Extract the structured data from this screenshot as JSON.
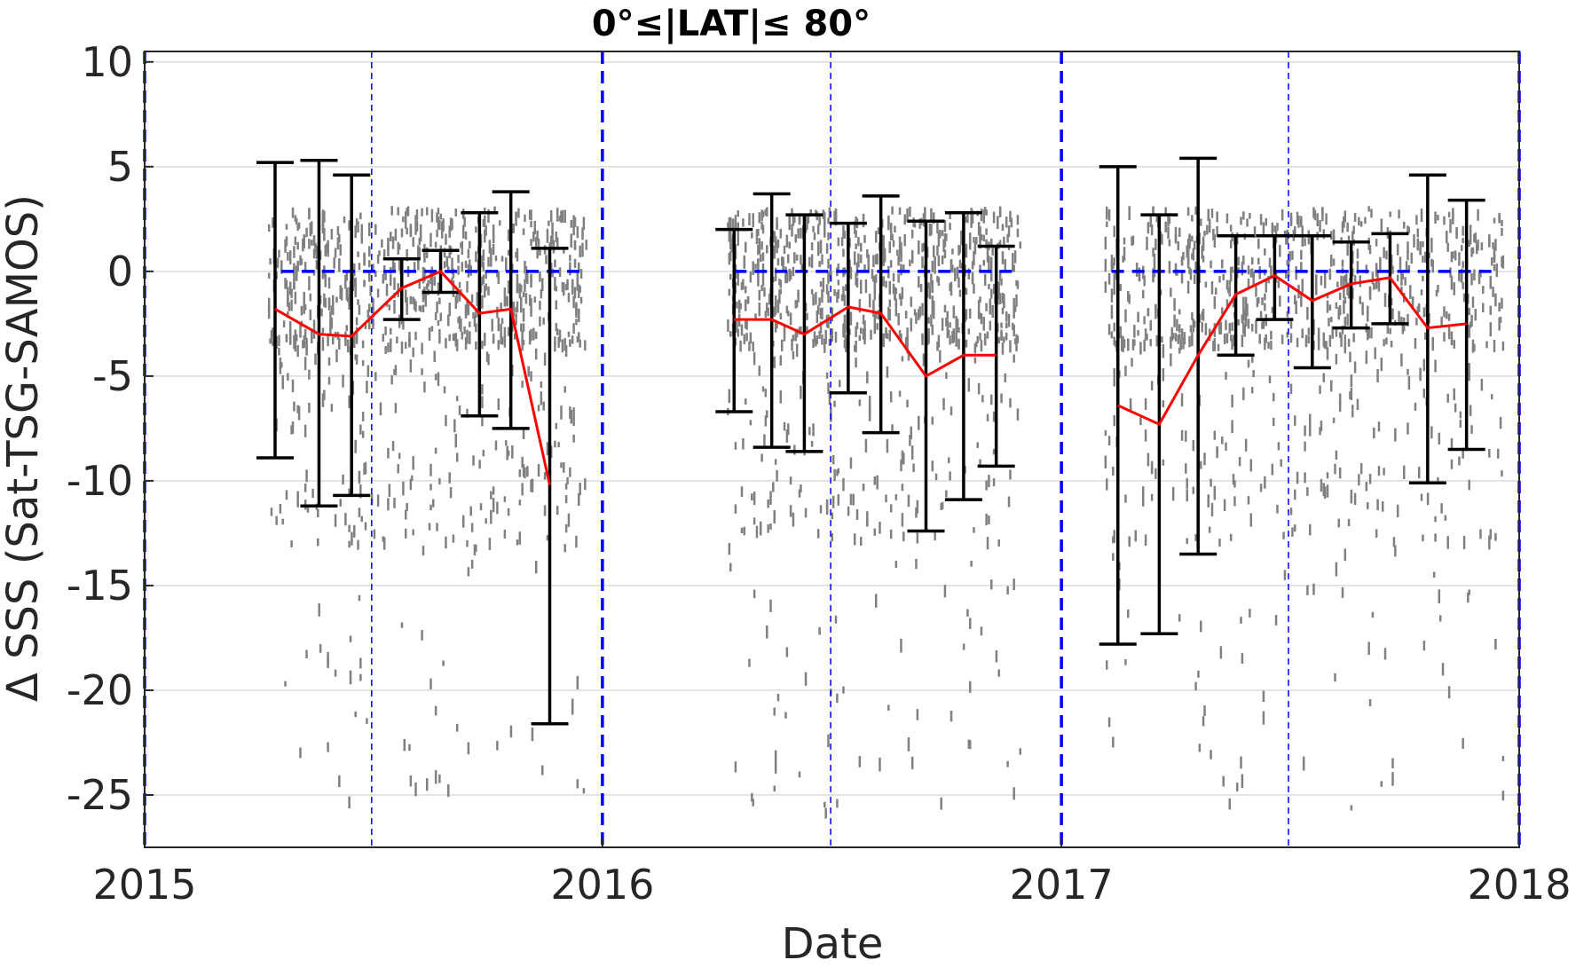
{
  "chart_data": {
    "type": "line",
    "title": "0°≤|LAT|≤ 80°",
    "xlabel": "Date",
    "ylabel": "Δ SSS (Sat-TSG-SAMOS)",
    "xlim": [
      "2015-01-01",
      "2018-01-01"
    ],
    "ylim": [
      -27.5,
      10.5
    ],
    "grid": true,
    "x_ticks": [
      "2015",
      "2016",
      "2017",
      "2018"
    ],
    "y_ticks": [
      10,
      5,
      0,
      -5,
      -10,
      -15,
      -20,
      -25
    ],
    "reference_lines": {
      "zero_line": {
        "y": 0,
        "color": "#0000ff",
        "style": "dashed",
        "segments": [
          [
            "2015-04-20",
            "2015-12-15"
          ],
          [
            "2016-04-15",
            "2016-11-25"
          ],
          [
            "2017-02-10",
            "2017-12-15"
          ]
        ]
      },
      "year_lines": {
        "color": "#0000ff",
        "style": "dashed",
        "x": [
          "2015-01-01",
          "2016-01-01",
          "2017-01-01",
          "2018-01-01"
        ]
      },
      "mid_year_lines": {
        "color": "#0000ff",
        "style": "dashed-thin",
        "x": [
          "2015-07-01",
          "2016-07-01",
          "2017-07-01"
        ]
      }
    },
    "series": [
      {
        "style": "errorbar",
        "color": "#000000",
        "x": [
          "2015-04-15",
          "2015-05-20",
          "2015-06-15",
          "2015-07-25",
          "2015-08-25",
          "2015-09-25",
          "2015-10-20",
          "2015-11-20",
          "2016-04-15",
          "2016-05-15",
          "2016-06-10",
          "2016-07-15",
          "2016-08-10",
          "2016-09-15",
          "2016-10-15",
          "2016-11-10",
          "2017-02-15",
          "2017-03-20",
          "2017-04-20",
          "2017-05-20",
          "2017-06-20",
          "2017-07-20",
          "2017-08-20",
          "2017-09-20",
          "2017-10-20",
          "2017-11-20"
        ],
        "mean": [
          -1.8,
          -3.0,
          -3.1,
          -0.8,
          0.0,
          -2.0,
          -1.8,
          -10.2,
          -2.3,
          -2.3,
          -3.0,
          -1.7,
          -2.0,
          -5.0,
          -4.0,
          -4.0,
          -6.4,
          -7.3,
          -4.0,
          -1.1,
          -0.2,
          -1.4,
          -0.6,
          -0.3,
          -2.7,
          -2.5
        ],
        "upper": [
          5.2,
          5.3,
          4.6,
          0.6,
          1.0,
          2.8,
          3.8,
          1.1,
          2.0,
          3.7,
          2.7,
          2.3,
          3.6,
          2.4,
          2.8,
          1.2,
          5.0,
          2.7,
          5.4,
          1.7,
          1.7,
          1.7,
          1.4,
          1.8,
          4.6,
          3.4
        ],
        "lower": [
          -8.9,
          -11.2,
          -10.7,
          -2.3,
          -1.0,
          -6.9,
          -7.5,
          -21.6,
          -6.7,
          -8.4,
          -8.6,
          -5.8,
          -7.7,
          -12.4,
          -10.9,
          -9.3,
          -17.8,
          -17.3,
          -13.5,
          -4.0,
          -2.3,
          -4.6,
          -2.7,
          -2.5,
          -10.1,
          -8.5
        ]
      },
      {
        "style": "line",
        "color": "#ff0000",
        "segments": [
          {
            "x": [
              "2015-04-15",
              "2015-05-20",
              "2015-06-15",
              "2015-07-25",
              "2015-08-25",
              "2015-09-25",
              "2015-10-20",
              "2015-11-20"
            ],
            "y": [
              -1.8,
              -3.0,
              -3.1,
              -0.8,
              0.0,
              -2.0,
              -1.8,
              -10.2
            ]
          },
          {
            "x": [
              "2016-04-15",
              "2016-05-15",
              "2016-06-10",
              "2016-07-15",
              "2016-08-10",
              "2016-09-15",
              "2016-10-15",
              "2016-11-10"
            ],
            "y": [
              -2.3,
              -2.3,
              -3.0,
              -1.7,
              -2.0,
              -5.0,
              -4.0,
              -4.0
            ]
          },
          {
            "x": [
              "2017-02-15",
              "2017-03-20",
              "2017-04-20",
              "2017-05-20",
              "2017-06-20",
              "2017-07-20",
              "2017-08-20",
              "2017-09-20",
              "2017-10-20",
              "2017-11-20"
            ],
            "y": [
              -6.4,
              -7.3,
              -4.0,
              -1.1,
              -0.2,
              -1.4,
              -0.6,
              -0.3,
              -2.7,
              -2.5
            ]
          }
        ]
      },
      {
        "style": "scatter",
        "color": "#808080",
        "shown_as": "dense individual collocation differences, mostly between +3 and -5, with outliers down to about -27",
        "spread": [
          {
            "from": "2015-04-10",
            "to": "2015-12-20"
          },
          {
            "from": "2016-04-10",
            "to": "2016-11-30"
          },
          {
            "from": "2017-02-05",
            "to": "2017-12-20"
          }
        ]
      }
    ]
  }
}
